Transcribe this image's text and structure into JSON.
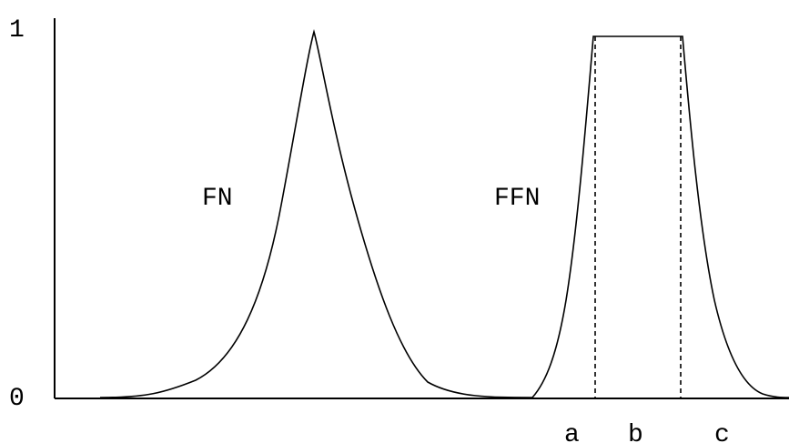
{
  "y_axis": {
    "top_label": "1",
    "bottom_label": "0"
  },
  "curves": {
    "fn_label": "FN",
    "ffn_label": "FFN"
  },
  "x_markers": {
    "a": "a",
    "b": "b",
    "c": "c"
  }
}
